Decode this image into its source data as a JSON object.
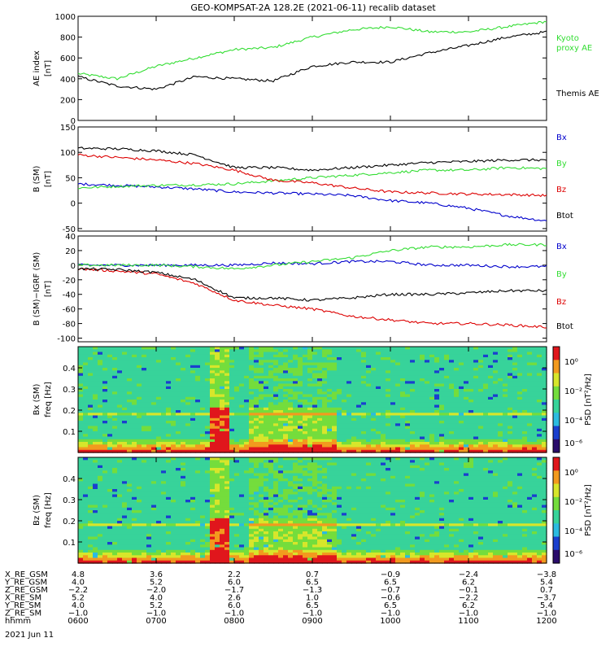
{
  "title": "GEO-KOMPSAT-2A 128.2E (2021-06-11) recalib dataset",
  "panels": [
    {
      "id": "ae",
      "ylabel_main": "AE index",
      "ylabel_unit": "[nT]",
      "yticks": [
        "1000",
        "800",
        "600",
        "400",
        "200",
        "0"
      ],
      "legend": [
        {
          "label": "Kyoto",
          "color": "#33dd33"
        },
        {
          "label": "proxy AE",
          "color": "#33dd33"
        },
        {
          "label": "Themis AE",
          "color": "#000000"
        }
      ]
    },
    {
      "id": "b",
      "ylabel_main": "B (SM)",
      "ylabel_unit": "[nT]",
      "yticks": [
        "150",
        "100",
        "50",
        "0",
        "-50"
      ],
      "legend": [
        {
          "label": "Bx",
          "color": "#0000cc"
        },
        {
          "label": "By",
          "color": "#33dd33"
        },
        {
          "label": "Bz",
          "color": "#dd0000"
        },
        {
          "label": "Btot",
          "color": "#000000"
        }
      ]
    },
    {
      "id": "dbb",
      "ylabel_main": "B (SM)−IGRF (SM)",
      "ylabel_unit": "[nT]",
      "yticks": [
        "40",
        "20",
        "0",
        "-20",
        "-40",
        "-60",
        "-80",
        "-100"
      ],
      "legend": [
        {
          "label": "Bx",
          "color": "#0000cc"
        },
        {
          "label": "By",
          "color": "#33dd33"
        },
        {
          "label": "Bz",
          "color": "#dd0000"
        },
        {
          "label": "Btot",
          "color": "#000000"
        }
      ]
    },
    {
      "id": "spec-bx",
      "ylabel_main": "Bx (SM)",
      "ylabel_unit": "freq [Hz]",
      "yticks": [
        "0.4",
        "0.3",
        "0.2",
        "0.1"
      ],
      "cbar_label": "PSD [nT²/Hz]",
      "cbar_ticks": [
        "10⁰",
        "10⁻²",
        "10⁻⁴",
        "10⁻⁶"
      ]
    },
    {
      "id": "spec-bz",
      "ylabel_main": "Bz (SM)",
      "ylabel_unit": "freq [Hz]",
      "yticks": [
        "0.4",
        "0.3",
        "0.2",
        "0.1"
      ],
      "cbar_label": "PSD [nT²/Hz]",
      "cbar_ticks": [
        "10⁰",
        "10⁻²",
        "10⁻⁴",
        "10⁻⁶"
      ]
    }
  ],
  "ephemeris": {
    "rows": [
      {
        "label": "X_RE_GSM",
        "values": [
          "4.8",
          "3.6",
          "2.2",
          "0.7",
          "−0.9",
          "−2.4",
          "−3.8"
        ]
      },
      {
        "label": "Y_RE_GSM",
        "values": [
          "4.0",
          "5.2",
          "6.0",
          "6.5",
          "6.5",
          "6.2",
          "5.4"
        ]
      },
      {
        "label": "Z_RE_GSM",
        "values": [
          "−2.2",
          "−2.0",
          "−1.7",
          "−1.3",
          "−0.7",
          "−0.1",
          "0.7"
        ]
      },
      {
        "label": "X_RE_SM",
        "values": [
          "5.2",
          "4.0",
          "2.6",
          "1.0",
          "−0.6",
          "−2.2",
          "−3.7"
        ]
      },
      {
        "label": "Y_RE_SM",
        "values": [
          "4.0",
          "5.2",
          "6.0",
          "6.5",
          "6.5",
          "6.2",
          "5.4"
        ]
      },
      {
        "label": "Z_RE_SM",
        "values": [
          "−1.0",
          "−1.0",
          "−1.0",
          "−1.0",
          "−1.0",
          "−1.0",
          "−1.0"
        ]
      },
      {
        "label": "hhmm",
        "values": [
          "0600",
          "0700",
          "0800",
          "0900",
          "1000",
          "1100",
          "1200"
        ]
      }
    ],
    "date": "2021 Jun 11"
  },
  "chart_data": [
    {
      "type": "line",
      "ylabel": "AE index [nT]",
      "ylim": [
        0,
        1000
      ],
      "x": [
        "06:00",
        "06:30",
        "07:00",
        "07:30",
        "08:00",
        "08:30",
        "09:00",
        "09:30",
        "10:00",
        "10:30",
        "11:00",
        "11:30",
        "12:00"
      ],
      "series": [
        {
          "name": "Kyoto proxy AE",
          "color": "#33dd33",
          "values": [
            450,
            400,
            520,
            600,
            680,
            700,
            800,
            870,
            900,
            850,
            850,
            900,
            950
          ]
        },
        {
          "name": "Themis AE",
          "color": "#000000",
          "values": [
            420,
            330,
            300,
            420,
            400,
            380,
            520,
            560,
            560,
            650,
            720,
            800,
            850
          ]
        }
      ]
    },
    {
      "type": "line",
      "ylabel": "B (SM) [nT]",
      "ylim": [
        -55,
        150
      ],
      "x": [
        "06:00",
        "06:30",
        "07:00",
        "07:30",
        "08:00",
        "08:30",
        "09:00",
        "09:30",
        "10:00",
        "10:30",
        "11:00",
        "11:30",
        "12:00"
      ],
      "series": [
        {
          "name": "Bx",
          "color": "#0000cc",
          "values": [
            38,
            35,
            32,
            28,
            22,
            20,
            18,
            15,
            5,
            0,
            -10,
            -25,
            -35
          ]
        },
        {
          "name": "By",
          "color": "#33dd33",
          "values": [
            30,
            33,
            35,
            36,
            38,
            44,
            50,
            55,
            60,
            65,
            65,
            70,
            68
          ]
        },
        {
          "name": "Bz",
          "color": "#dd0000",
          "values": [
            95,
            90,
            85,
            78,
            65,
            45,
            40,
            30,
            22,
            20,
            18,
            17,
            15
          ]
        },
        {
          "name": "Btot",
          "color": "#000000",
          "values": [
            108,
            107,
            103,
            95,
            70,
            70,
            65,
            70,
            75,
            80,
            82,
            85,
            85
          ]
        }
      ]
    },
    {
      "type": "line",
      "ylabel": "B (SM)-IGRF (SM) [nT]",
      "ylim": [
        -105,
        40
      ],
      "x": [
        "06:00",
        "06:30",
        "07:00",
        "07:30",
        "08:00",
        "08:30",
        "09:00",
        "09:30",
        "10:00",
        "10:30",
        "11:00",
        "11:30",
        "12:00"
      ],
      "series": [
        {
          "name": "Bx",
          "color": "#0000cc",
          "values": [
            0,
            0,
            0,
            0,
            0,
            3,
            2,
            5,
            5,
            0,
            0,
            -2,
            -2
          ]
        },
        {
          "name": "By",
          "color": "#33dd33",
          "values": [
            0,
            0,
            0,
            -2,
            -5,
            0,
            5,
            10,
            20,
            25,
            25,
            28,
            28
          ]
        },
        {
          "name": "Bz",
          "color": "#dd0000",
          "values": [
            -5,
            -8,
            -12,
            -25,
            -48,
            -55,
            -60,
            -70,
            -75,
            -80,
            -80,
            -82,
            -85
          ]
        },
        {
          "name": "Btot",
          "color": "#000000",
          "values": [
            -5,
            -6,
            -10,
            -20,
            -45,
            -45,
            -48,
            -45,
            -40,
            -40,
            -38,
            -35,
            -35
          ]
        }
      ]
    },
    {
      "type": "heatmap",
      "ylabel": "Bx (SM) freq [Hz]",
      "ylim": [
        0,
        0.5
      ],
      "colorbar": "PSD [nT²/Hz]",
      "colorbar_range": [
        "10⁻⁶",
        "10¹"
      ]
    },
    {
      "type": "heatmap",
      "ylabel": "Bz (SM) freq [Hz]",
      "ylim": [
        0,
        0.5
      ],
      "colorbar": "PSD [nT²/Hz]",
      "colorbar_range": [
        "10⁻⁶",
        "10¹"
      ]
    }
  ]
}
